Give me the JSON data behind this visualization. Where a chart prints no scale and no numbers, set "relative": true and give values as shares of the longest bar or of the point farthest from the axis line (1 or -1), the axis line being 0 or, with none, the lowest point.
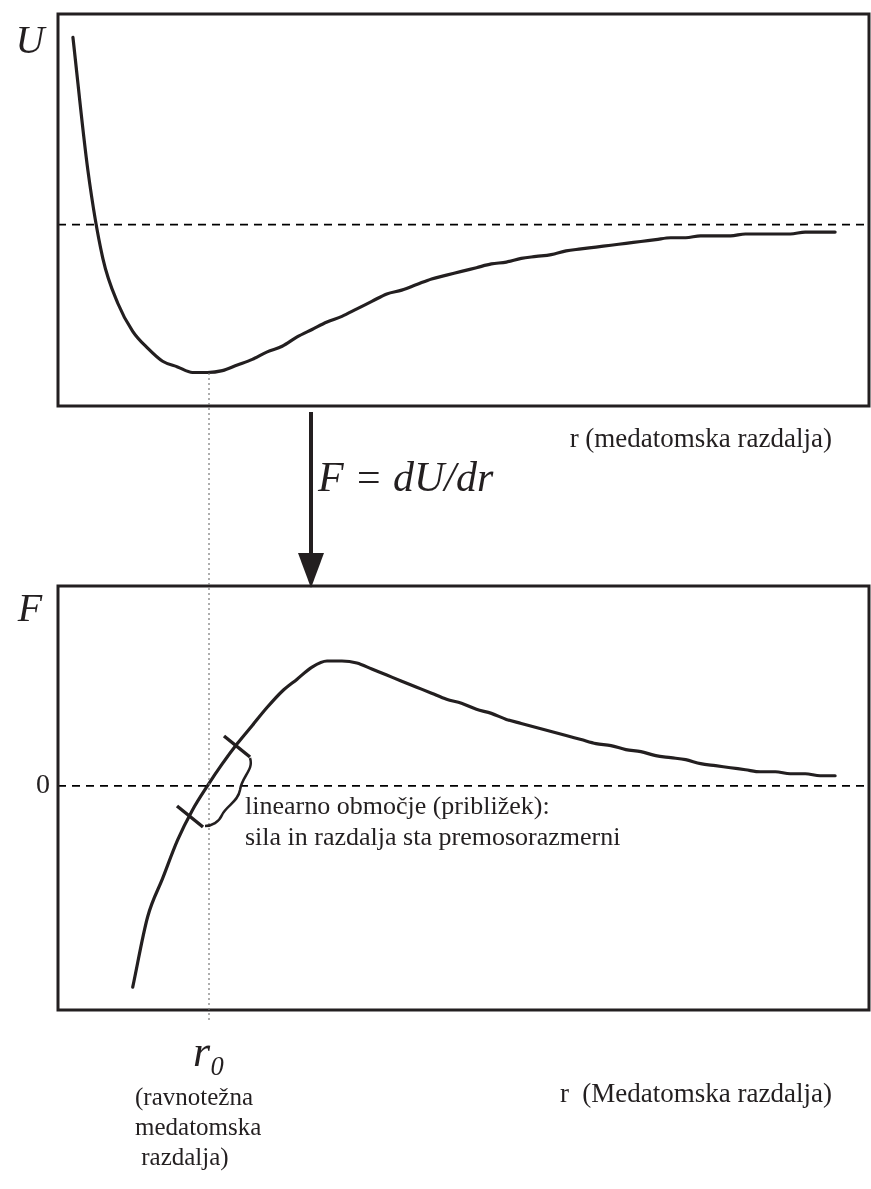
{
  "chart_data": [
    {
      "type": "line",
      "ylabel": "U",
      "xlabel": "r (medatomska razdalja)",
      "relative": true,
      "color": "#231f20",
      "categories": [
        null,
        null,
        null,
        null,
        null,
        null,
        null,
        null,
        null,
        null,
        null,
        null,
        null,
        null,
        null,
        null,
        null,
        null,
        null,
        null,
        null,
        null,
        null,
        null,
        null,
        null,
        null,
        null,
        null,
        null,
        null,
        null,
        null,
        null,
        null,
        null,
        null,
        null,
        null,
        null,
        null,
        null,
        null,
        null,
        null,
        null,
        null,
        null,
        null,
        null,
        null,
        null,
        null,
        null,
        null
      ],
      "values": [
        null,
        1.0,
        0.29,
        -0.18,
        -0.42,
        -0.57,
        -0.66,
        -0.73,
        -0.76,
        -0.79,
        -0.79,
        -0.78,
        -0.75,
        -0.72,
        -0.68,
        -0.65,
        -0.6,
        -0.56,
        -0.52,
        -0.49,
        -0.45,
        -0.41,
        -0.37,
        -0.35,
        -0.32,
        -0.29,
        -0.27,
        -0.25,
        -0.23,
        -0.21,
        -0.2,
        -0.18,
        -0.17,
        -0.16,
        -0.14,
        -0.13,
        -0.12,
        -0.11,
        -0.1,
        -0.09,
        -0.08,
        -0.07,
        -0.07,
        -0.06,
        -0.06,
        -0.06,
        -0.05,
        -0.05,
        -0.05,
        -0.05,
        -0.04,
        -0.04,
        -0.04,
        null,
        null
      ],
      "ref_lines": [
        {
          "axis": "y",
          "value": 0,
          "line_style": "dashed",
          "color": "#000000"
        }
      ],
      "annotations": [
        "F = dU/dr"
      ]
    },
    {
      "type": "line",
      "ylabel": "F",
      "xlabel": "r  (Medatomska razdalja)",
      "relative": true,
      "color": "#231f20",
      "categories": [
        null,
        null,
        null,
        null,
        null,
        null,
        null,
        null,
        null,
        null,
        null,
        null,
        null,
        null,
        null,
        null,
        null,
        null,
        null,
        null,
        null,
        null,
        null,
        null,
        null,
        null,
        null,
        null,
        null,
        null,
        null,
        null,
        null,
        null,
        null,
        null,
        null,
        null,
        null,
        null,
        null,
        null,
        null,
        null,
        null,
        null,
        null,
        null,
        null,
        null,
        null,
        null,
        null,
        null,
        null
      ],
      "values": [
        null,
        null,
        null,
        null,
        null,
        -1.0,
        -0.65,
        -0.46,
        -0.27,
        -0.12,
        0.0,
        0.11,
        0.21,
        0.3,
        0.39,
        0.47,
        0.53,
        0.59,
        0.62,
        0.62,
        0.61,
        0.58,
        0.55,
        0.52,
        0.49,
        0.46,
        0.43,
        0.41,
        0.38,
        0.36,
        0.33,
        0.31,
        0.29,
        0.27,
        0.25,
        0.23,
        0.21,
        0.2,
        0.18,
        0.17,
        0.15,
        0.14,
        0.13,
        0.11,
        0.1,
        0.09,
        0.08,
        0.07,
        0.07,
        0.06,
        0.06,
        0.05,
        0.05,
        null,
        null
      ],
      "ref_lines": [
        {
          "axis": "y",
          "value": 0,
          "label": "0",
          "line_style": "dashed",
          "color": "#000000"
        }
      ],
      "annotations": [
        "r₀",
        "linearno območje (približek):\nsila in razdalja sta premosorazmerni",
        "(ravnotežna\nmedatomska\n razdalja)"
      ]
    }
  ]
}
